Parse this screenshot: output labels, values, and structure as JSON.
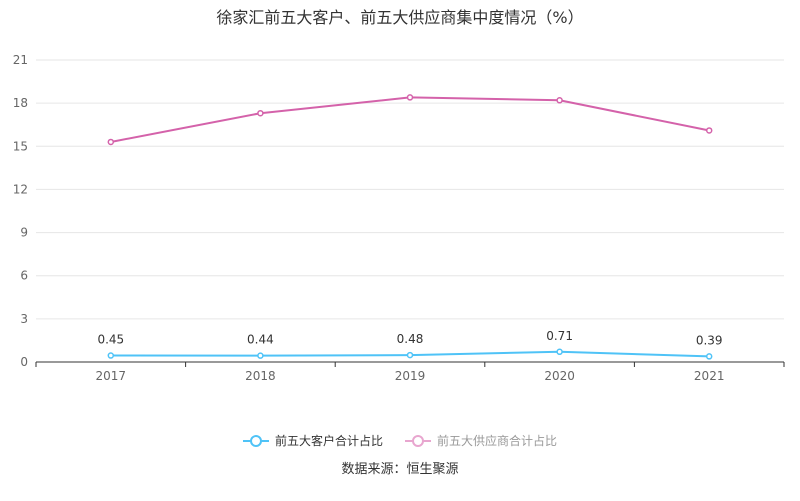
{
  "title": "徐家汇前五大客户、前五大供应商集中度情况（%）",
  "source": "数据来源：恒生聚源",
  "chart_data": {
    "type": "line",
    "title": "徐家汇前五大客户、前五大供应商集中度情况（%）",
    "categories": [
      "2017",
      "2018",
      "2019",
      "2020",
      "2021"
    ],
    "yticks": [
      "0",
      "3",
      "6",
      "9",
      "12",
      "15",
      "18",
      "21"
    ],
    "ylim": [
      0,
      21
    ],
    "grid": true,
    "legend_position": "bottom",
    "series": [
      {
        "name": "前五大客户合计占比",
        "values": [
          0.45,
          0.44,
          0.48,
          0.71,
          0.39
        ],
        "labels": [
          "0.45",
          "0.44",
          "0.48",
          "0.71",
          "0.39"
        ],
        "color": "#4fc3f7",
        "show_labels": true
      },
      {
        "name": "前五大供应商合计占比",
        "values": [
          15.3,
          17.3,
          18.4,
          18.2,
          16.1
        ],
        "color": "#d462aa",
        "show_labels": false
      }
    ]
  }
}
